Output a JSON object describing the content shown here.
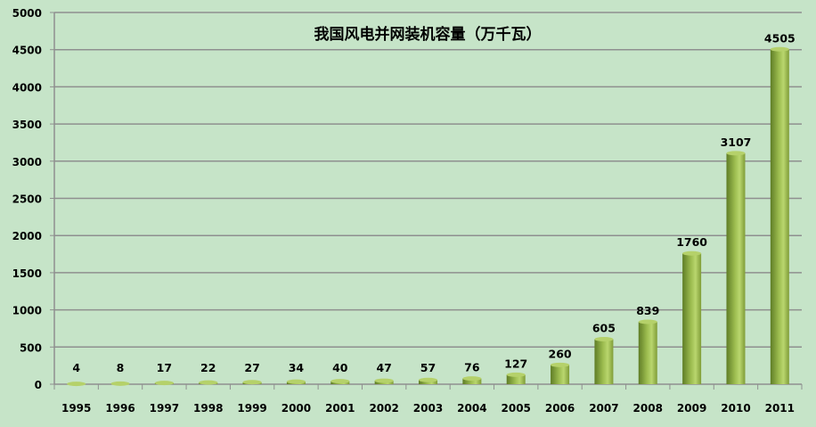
{
  "chart_data": {
    "type": "bar",
    "title": "我国风电并网装机容量（万千瓦）",
    "xlabel": "",
    "ylabel": "",
    "categories": [
      "1995",
      "1996",
      "1997",
      "1998",
      "1999",
      "2000",
      "2001",
      "2002",
      "2003",
      "2004",
      "2005",
      "2006",
      "2007",
      "2008",
      "2009",
      "2010",
      "2011"
    ],
    "values": [
      4,
      8,
      17,
      22,
      27,
      34,
      40,
      47,
      57,
      76,
      127,
      260,
      605,
      839,
      1760,
      3107,
      4505
    ],
    "ylim": [
      0,
      5000
    ],
    "yticks": [
      0,
      500,
      1000,
      1500,
      2000,
      2500,
      3000,
      3500,
      4000,
      4500,
      5000
    ],
    "grid": true,
    "legend": "none",
    "colors": {
      "background": "#c6e4c8",
      "bar_light": "#b5d16a",
      "bar_dark": "#5f7d26",
      "grid": "#8f8f8f"
    }
  }
}
